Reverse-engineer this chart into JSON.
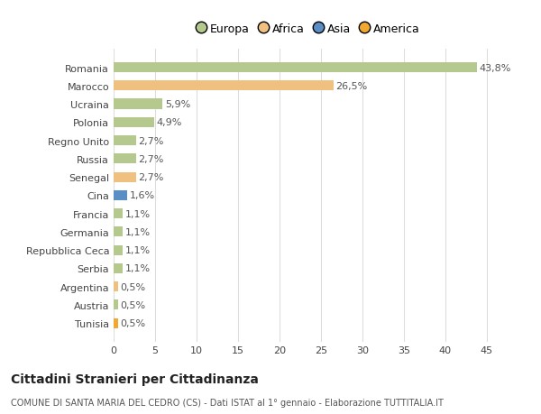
{
  "categories": [
    "Tunisia",
    "Austria",
    "Argentina",
    "Serbia",
    "Repubblica Ceca",
    "Germania",
    "Francia",
    "Cina",
    "Senegal",
    "Russia",
    "Regno Unito",
    "Polonia",
    "Ucraina",
    "Marocco",
    "Romania"
  ],
  "values": [
    0.5,
    0.5,
    0.5,
    1.1,
    1.1,
    1.1,
    1.1,
    1.6,
    2.7,
    2.7,
    2.7,
    4.9,
    5.9,
    26.5,
    43.8
  ],
  "labels": [
    "0,5%",
    "0,5%",
    "0,5%",
    "1,1%",
    "1,1%",
    "1,1%",
    "1,1%",
    "1,6%",
    "2,7%",
    "2,7%",
    "2,7%",
    "4,9%",
    "5,9%",
    "26,5%",
    "43,8%"
  ],
  "colors": [
    "#f0a830",
    "#b5c98e",
    "#f0c080",
    "#b5c98e",
    "#b5c98e",
    "#b5c98e",
    "#b5c98e",
    "#5b8ec4",
    "#f0c080",
    "#b5c98e",
    "#b5c98e",
    "#b5c98e",
    "#b5c98e",
    "#f0c080",
    "#b5c98e"
  ],
  "legend_labels": [
    "Europa",
    "Africa",
    "Asia",
    "America"
  ],
  "legend_colors": [
    "#b5c98e",
    "#f0c080",
    "#5b8ec4",
    "#f0a830"
  ],
  "title": "Cittadini Stranieri per Cittadinanza",
  "subtitle": "COMUNE DI SANTA MARIA DEL CEDRO (CS) - Dati ISTAT al 1° gennaio - Elaborazione TUTTITALIA.IT",
  "xlim": [
    0,
    47
  ],
  "xticks": [
    0,
    5,
    10,
    15,
    20,
    25,
    30,
    35,
    40,
    45
  ],
  "background_color": "#ffffff",
  "grid_color": "#dddddd",
  "bar_height": 0.55,
  "label_fontsize": 8,
  "tick_fontsize": 8,
  "title_fontsize": 10,
  "subtitle_fontsize": 7
}
